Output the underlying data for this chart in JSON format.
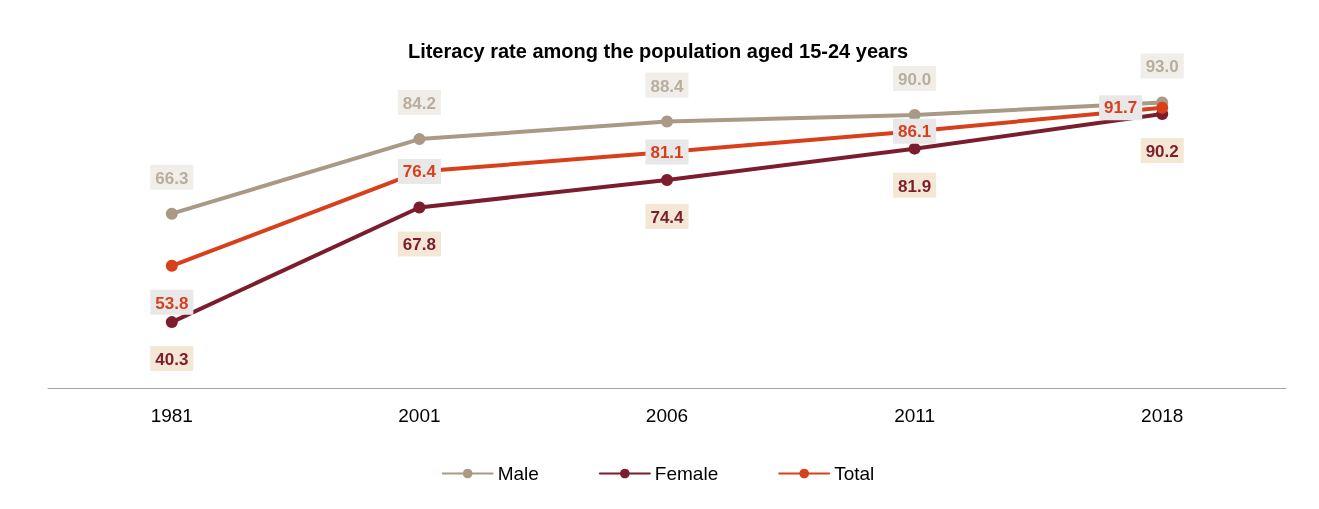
{
  "chart_data": {
    "type": "line",
    "title": "Literacy rate among the population aged 15-24 years",
    "categories": [
      "1981",
      "2001",
      "2006",
      "2011",
      "2018"
    ],
    "series": [
      {
        "name": "Male",
        "color": "#a99a86",
        "values": [
          66.3,
          84.2,
          88.4,
          90.0,
          93.0
        ],
        "value_labels": [
          "66.3",
          "84.2",
          "88.4",
          "90.0",
          "93.0"
        ]
      },
      {
        "name": "Female",
        "color": "#7c1d2e",
        "values": [
          40.3,
          67.8,
          74.4,
          81.9,
          90.2
        ],
        "value_labels": [
          "40.3",
          "67.8",
          "74.4",
          "81.9",
          "90.2"
        ]
      },
      {
        "name": "Total",
        "color": "#d8401c",
        "values": [
          53.8,
          76.4,
          81.1,
          86.1,
          91.7
        ],
        "value_labels": [
          "53.8",
          "76.4",
          "81.1",
          "86.1",
          "91.7"
        ]
      }
    ],
    "marker": "circle",
    "line_style": "solid",
    "grid": false,
    "legend": "bottom",
    "tick_labels": "x"
  }
}
